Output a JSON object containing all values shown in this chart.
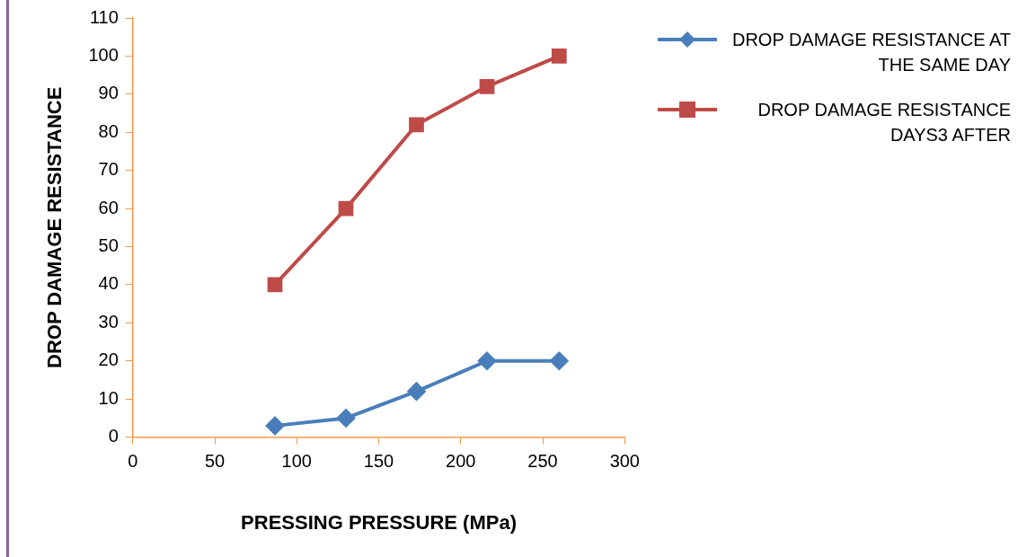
{
  "chart_data": {
    "type": "line",
    "xlabel": "PRESSING PRESSURE (MPa)",
    "ylabel": "DROP DAMAGE RESISTANCE",
    "x": [
      86.7,
      130,
      173,
      216,
      260
    ],
    "series": [
      {
        "name": "DROP DAMAGE RESISTANCE AT THE SAME DAY",
        "color": "#4a7ebb",
        "marker": "diamond",
        "values": [
          3,
          5,
          12,
          20,
          20
        ]
      },
      {
        "name": "DROP DAMAGE RESISTANCE DAYS3 AFTER",
        "color": "#be4b48",
        "marker": "square",
        "values": [
          40,
          60,
          82,
          92,
          100
        ]
      }
    ],
    "xlim": [
      0,
      300
    ],
    "xticks": [
      0,
      50,
      100,
      150,
      200,
      250,
      300
    ],
    "ylim": [
      0,
      110
    ],
    "yticks": [
      0,
      10,
      20,
      30,
      40,
      50,
      60,
      70,
      80,
      90,
      100,
      110
    ],
    "grid": false,
    "legend": "right",
    "line_style": "solid"
  }
}
